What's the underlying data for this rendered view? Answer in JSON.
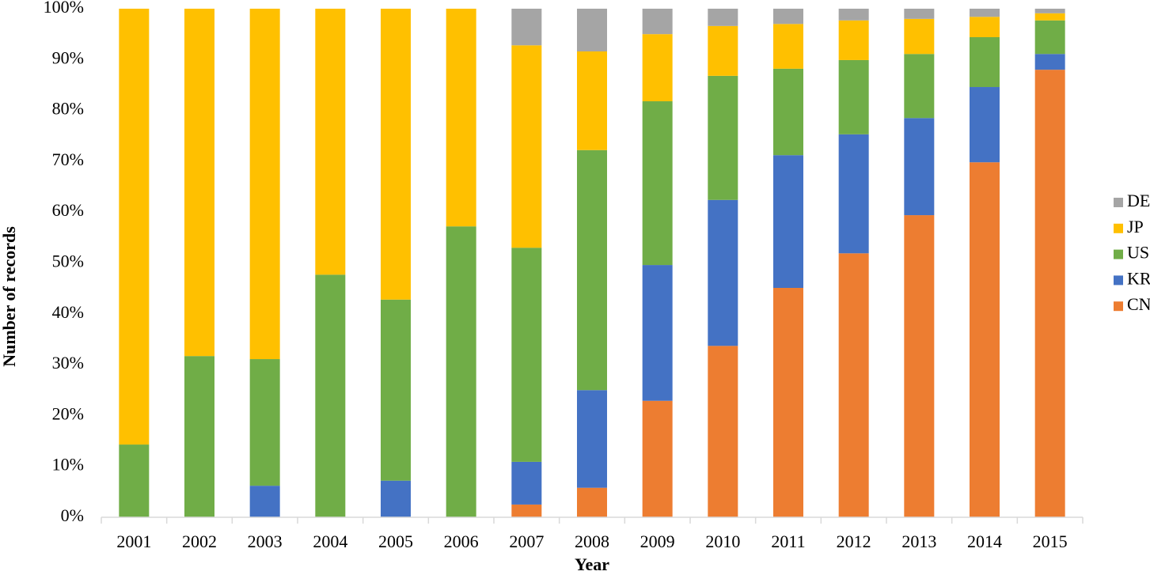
{
  "chart_data": {
    "type": "stacked_bar",
    "y_label": "Number of records",
    "x_label": "Year",
    "categories": [
      "2001",
      "2002",
      "2003",
      "2004",
      "2005",
      "2006",
      "2007",
      "2008",
      "2009",
      "2010",
      "2011",
      "2012",
      "2013",
      "2014",
      "2015"
    ],
    "series": [
      {
        "name": "CN",
        "color": "#ed7d31",
        "values": [
          0,
          0,
          0,
          0,
          0,
          0,
          2.5,
          5.8,
          22.9,
          33.7,
          45.1,
          51.9,
          59.4,
          69.8,
          88.0
        ]
      },
      {
        "name": "KR",
        "color": "#4472c4",
        "values": [
          0,
          0,
          6.2,
          0,
          7.2,
          0,
          8.4,
          19.2,
          26.7,
          28.7,
          26.1,
          23.4,
          19.1,
          14.8,
          3.1
        ]
      },
      {
        "name": "US",
        "color": "#70ad47",
        "values": [
          14.3,
          31.7,
          24.9,
          47.7,
          35.6,
          57.2,
          42.1,
          47.2,
          32.2,
          24.4,
          17.0,
          14.6,
          12.6,
          9.8,
          6.6
        ]
      },
      {
        "name": "JP",
        "color": "#ffc000",
        "values": [
          85.7,
          68.3,
          68.9,
          52.3,
          57.2,
          42.8,
          39.8,
          19.4,
          13.2,
          9.8,
          8.8,
          7.8,
          6.9,
          4.0,
          1.4
        ]
      },
      {
        "name": "DE",
        "color": "#a5a5a5",
        "values": [
          0,
          0,
          0,
          0,
          0,
          0,
          7.2,
          8.4,
          5.0,
          3.4,
          3.0,
          2.3,
          2.0,
          1.6,
          0.9
        ]
      }
    ],
    "ylim": [
      0,
      100
    ],
    "yticks": [
      {
        "value": 0,
        "label": "0%"
      },
      {
        "value": 10,
        "label": "10%"
      },
      {
        "value": 20,
        "label": "20%"
      },
      {
        "value": 30,
        "label": "30%"
      },
      {
        "value": 40,
        "label": "40%"
      },
      {
        "value": 50,
        "label": "50%"
      },
      {
        "value": 60,
        "label": "60%"
      },
      {
        "value": 70,
        "label": "70%"
      },
      {
        "value": 80,
        "label": "80%"
      },
      {
        "value": 90,
        "label": "90%"
      },
      {
        "value": 100,
        "label": "100%"
      }
    ],
    "grid": false,
    "legend": "right"
  }
}
